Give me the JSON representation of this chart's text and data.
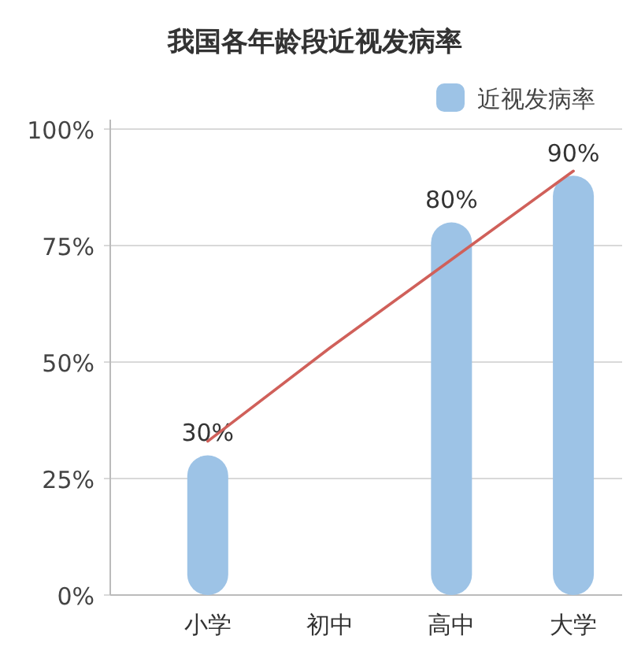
{
  "chart_data": {
    "type": "bar",
    "title": "我国各年龄段近视发病率",
    "categories": [
      "小学",
      "初中",
      "高中",
      "大学"
    ],
    "series": [
      {
        "name": "近视发病率",
        "color": "#9dc3e6",
        "values": [
          30,
          null,
          80,
          90
        ],
        "value_labels": [
          "30%",
          null,
          "80%",
          "90%"
        ]
      },
      {
        "type": "line",
        "color": "#d0605a",
        "values": [
          33,
          53,
          72,
          91
        ]
      }
    ],
    "ylim": [
      0,
      100
    ],
    "yticks": [
      {
        "value": 0,
        "label": "0%"
      },
      {
        "value": 25,
        "label": "25%"
      },
      {
        "value": 50,
        "label": "50%"
      },
      {
        "value": 75,
        "label": "75%"
      },
      {
        "value": 100,
        "label": "100%"
      }
    ],
    "grid": "y",
    "legend": "top right"
  }
}
